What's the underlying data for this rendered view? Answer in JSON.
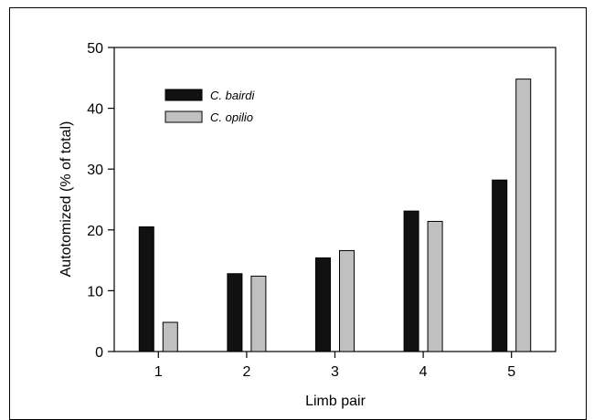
{
  "chart_data": {
    "type": "bar",
    "categories": [
      "1",
      "2",
      "3",
      "4",
      "5"
    ],
    "series": [
      {
        "name": "C. bairdi",
        "color": "#111111",
        "values": [
          20.5,
          12.8,
          15.4,
          23.1,
          28.2
        ]
      },
      {
        "name": "C. opilio",
        "color": "#c0c0c0",
        "values": [
          4.8,
          12.4,
          16.6,
          21.4,
          44.8
        ]
      }
    ],
    "title": "",
    "xlabel": "Limb pair",
    "ylabel": "Autotomized (% of total)",
    "ylim": [
      0,
      50
    ],
    "yticks": [
      0,
      10,
      20,
      30,
      40,
      50
    ],
    "grid": false,
    "legend_position": "top-left"
  }
}
